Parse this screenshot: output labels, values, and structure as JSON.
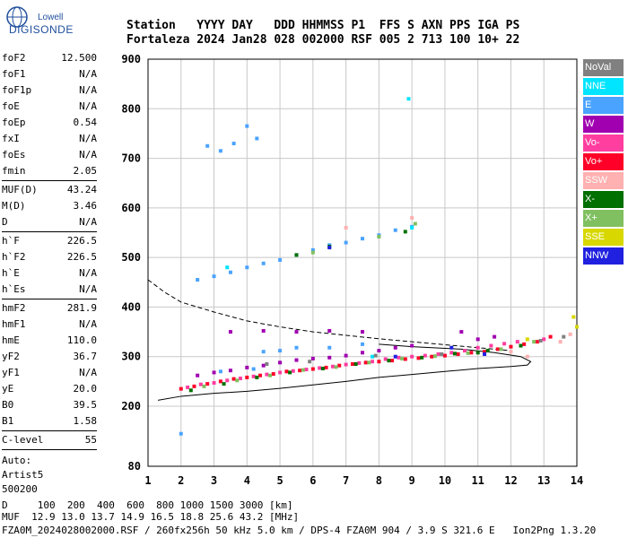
{
  "logo": {
    "brand": "Lowell",
    "name": "DIGISONDE"
  },
  "header": {
    "line1": "Station   YYYY DAY   DDD HHMMSS P1  FFS S AXN PPS IGA PS",
    "line2": "Fortaleza 2024 Jan28 028 002000 RSF 005 2 713 100 10+ 22"
  },
  "params": {
    "group1": [
      {
        "k": "foF2",
        "v": "12.500"
      },
      {
        "k": "foF1",
        "v": "N/A"
      },
      {
        "k": "foF1p",
        "v": "N/A"
      },
      {
        "k": "foE",
        "v": "N/A"
      },
      {
        "k": "foEp",
        "v": "0.54"
      },
      {
        "k": "fxI",
        "v": "N/A"
      },
      {
        "k": "foEs",
        "v": "N/A"
      },
      {
        "k": "fmin",
        "v": "2.05"
      }
    ],
    "group2": [
      {
        "k": "MUF(D)",
        "v": "43.24"
      },
      {
        "k": "M(D)",
        "v": "3.46"
      },
      {
        "k": "D",
        "v": "N/A"
      }
    ],
    "group3": [
      {
        "k": "h`F",
        "v": "226.5"
      },
      {
        "k": "h`F2",
        "v": "226.5"
      },
      {
        "k": "h`E",
        "v": "N/A"
      },
      {
        "k": "h`Es",
        "v": "N/A"
      }
    ],
    "group4": [
      {
        "k": "hmF2",
        "v": "281.9"
      },
      {
        "k": "hmF1",
        "v": "N/A"
      },
      {
        "k": "hmE",
        "v": "110.0"
      },
      {
        "k": "yF2",
        "v": "36.7"
      },
      {
        "k": "yF1",
        "v": "N/A"
      },
      {
        "k": "yE",
        "v": "20.0"
      },
      {
        "k": "B0",
        "v": "39.5"
      },
      {
        "k": "B1",
        "v": "1.58"
      }
    ],
    "group5": [
      {
        "k": "C-level",
        "v": "55"
      }
    ],
    "auto": [
      "Auto:",
      "Artist5",
      "500200"
    ]
  },
  "footer": {
    "line1": "D     100  200  400  600  800 1000 1500 3000 [km]",
    "line2": "MUF  12.9 13.0 13.7 14.9 16.5 18.8 25.6 43.2 [MHz]",
    "line3": "FZA0M_2024028002000.RSF / 260fx256h 50 kHz 5.0 km / DPS-4 FZA0M 904 / 3.9 S 321.6 E   Ion2Png 1.3.20"
  },
  "legend": [
    {
      "label": "NoVal",
      "color": "#808080"
    },
    {
      "label": "NNE",
      "color": "#00e5ff"
    },
    {
      "label": "E",
      "color": "#4aa3ff"
    },
    {
      "label": "W",
      "color": "#a000b0"
    },
    {
      "label": "Vo-",
      "color": "#ff3ea0"
    },
    {
      "label": "Vo+",
      "color": "#ff0028"
    },
    {
      "label": "SSW",
      "color": "#ffb0b0"
    },
    {
      "label": "X-",
      "color": "#007000"
    },
    {
      "label": "X+",
      "color": "#80c060"
    },
    {
      "label": "SSE",
      "color": "#d8d800"
    },
    {
      "label": "NNW",
      "color": "#2020e0"
    }
  ],
  "chart_data": {
    "type": "scatter",
    "title": "",
    "xlabel": "",
    "ylabel": "",
    "xlim": [
      1,
      14
    ],
    "ylim": [
      80,
      900
    ],
    "x_ticks": [
      1,
      2,
      3,
      4,
      5,
      6,
      7,
      8,
      9,
      10,
      11,
      12,
      13,
      14
    ],
    "y_ticks": [
      80,
      200,
      300,
      400,
      500,
      600,
      700,
      800,
      900
    ],
    "grid": true,
    "series": [
      {
        "color": "#ff0028",
        "points": [
          [
            2.0,
            235
          ],
          [
            2.4,
            240
          ],
          [
            2.8,
            245
          ],
          [
            3.2,
            250
          ],
          [
            3.6,
            255
          ],
          [
            4.0,
            258
          ],
          [
            4.4,
            262
          ],
          [
            4.8,
            265
          ],
          [
            5.2,
            270
          ],
          [
            5.6,
            272
          ],
          [
            6.0,
            275
          ],
          [
            6.4,
            278
          ],
          [
            6.8,
            282
          ],
          [
            7.2,
            285
          ],
          [
            7.6,
            288
          ],
          [
            8.0,
            290
          ],
          [
            8.4,
            292
          ],
          [
            8.8,
            295
          ],
          [
            9.2,
            297
          ],
          [
            9.6,
            300
          ],
          [
            10.0,
            302
          ],
          [
            10.4,
            305
          ],
          [
            10.8,
            308
          ],
          [
            11.2,
            310
          ],
          [
            11.6,
            315
          ],
          [
            12.0,
            320
          ],
          [
            12.4,
            325
          ],
          [
            12.8,
            330
          ],
          [
            13.2,
            340
          ]
        ]
      },
      {
        "color": "#ff3ea0",
        "points": [
          [
            2.2,
            238
          ],
          [
            2.6,
            244
          ],
          [
            3.0,
            247
          ],
          [
            3.4,
            252
          ],
          [
            3.8,
            256
          ],
          [
            4.2,
            260
          ],
          [
            4.6,
            264
          ],
          [
            5.0,
            268
          ],
          [
            5.4,
            271
          ],
          [
            5.8,
            274
          ],
          [
            6.2,
            277
          ],
          [
            6.6,
            280
          ],
          [
            7.0,
            284
          ],
          [
            7.4,
            287
          ],
          [
            7.8,
            290
          ],
          [
            8.2,
            295
          ],
          [
            8.6,
            298
          ],
          [
            9.0,
            300
          ],
          [
            9.4,
            302
          ],
          [
            9.8,
            305
          ],
          [
            10.2,
            308
          ],
          [
            10.6,
            312
          ],
          [
            11.0,
            318
          ],
          [
            11.4,
            322
          ],
          [
            11.8,
            326
          ],
          [
            12.2,
            330
          ],
          [
            13.0,
            335
          ]
        ]
      },
      {
        "color": "#a000b0",
        "points": [
          [
            2.5,
            262
          ],
          [
            3.0,
            268
          ],
          [
            3.5,
            272
          ],
          [
            4.0,
            278
          ],
          [
            4.5,
            282
          ],
          [
            5.0,
            288
          ],
          [
            5.5,
            293
          ],
          [
            6.0,
            296
          ],
          [
            6.5,
            298
          ],
          [
            7.0,
            302
          ],
          [
            7.5,
            308
          ],
          [
            8.0,
            312
          ],
          [
            8.5,
            318
          ],
          [
            9.0,
            322
          ],
          [
            10.5,
            350
          ],
          [
            11.0,
            335
          ],
          [
            11.5,
            340
          ],
          [
            3.5,
            350
          ],
          [
            4.5,
            352
          ],
          [
            5.5,
            350
          ],
          [
            6.5,
            352
          ],
          [
            7.5,
            350
          ]
        ]
      },
      {
        "color": "#4aa3ff",
        "points": [
          [
            2.8,
            725
          ],
          [
            3.2,
            715
          ],
          [
            3.6,
            730
          ],
          [
            4.0,
            765
          ],
          [
            4.3,
            740
          ],
          [
            2.5,
            455
          ],
          [
            3.0,
            462
          ],
          [
            3.5,
            470
          ],
          [
            4.0,
            480
          ],
          [
            4.5,
            488
          ],
          [
            5.0,
            495
          ],
          [
            5.5,
            505
          ],
          [
            6.0,
            515
          ],
          [
            6.5,
            525
          ],
          [
            7.0,
            530
          ],
          [
            7.5,
            538
          ],
          [
            8.0,
            545
          ],
          [
            8.5,
            555
          ],
          [
            9.0,
            562
          ],
          [
            4.5,
            310
          ],
          [
            5.0,
            312
          ],
          [
            5.5,
            318
          ],
          [
            6.5,
            318
          ],
          [
            7.5,
            325
          ],
          [
            3.2,
            270
          ],
          [
            4.2,
            275
          ],
          [
            2.0,
            145
          ]
        ]
      },
      {
        "color": "#007000",
        "points": [
          [
            2.3,
            232
          ],
          [
            3.3,
            245
          ],
          [
            4.3,
            258
          ],
          [
            5.3,
            268
          ],
          [
            6.3,
            276
          ],
          [
            7.3,
            285
          ],
          [
            8.3,
            292
          ],
          [
            9.3,
            298
          ],
          [
            10.3,
            306
          ],
          [
            11.3,
            312
          ],
          [
            12.3,
            322
          ],
          [
            5.5,
            505
          ],
          [
            6.5,
            522
          ],
          [
            8.8,
            552
          ],
          [
            11.0,
            308
          ]
        ]
      },
      {
        "color": "#80c060",
        "points": [
          [
            2.7,
            240
          ],
          [
            3.7,
            252
          ],
          [
            4.7,
            262
          ],
          [
            5.7,
            273
          ],
          [
            6.7,
            279
          ],
          [
            7.7,
            288
          ],
          [
            8.7,
            296
          ],
          [
            9.7,
            301
          ],
          [
            10.7,
            307
          ],
          [
            11.7,
            315
          ],
          [
            12.7,
            330
          ],
          [
            6.0,
            510
          ],
          [
            8.0,
            542
          ],
          [
            9.1,
            568
          ]
        ]
      },
      {
        "color": "#ffb0b0",
        "points": [
          [
            12.5,
            300
          ],
          [
            13.5,
            330
          ],
          [
            13.8,
            345
          ],
          [
            12.0,
            310
          ],
          [
            9.0,
            580
          ],
          [
            7.0,
            560
          ]
        ]
      },
      {
        "color": "#00e5ff",
        "points": [
          [
            8.9,
            820
          ],
          [
            9.0,
            560
          ],
          [
            3.4,
            480
          ],
          [
            7.8,
            300
          ]
        ]
      },
      {
        "color": "#d8d800",
        "points": [
          [
            14.0,
            360
          ],
          [
            13.9,
            380
          ],
          [
            12.5,
            335
          ]
        ]
      },
      {
        "color": "#2020e0",
        "points": [
          [
            8.5,
            300
          ],
          [
            10.2,
            318
          ],
          [
            11.2,
            305
          ],
          [
            6.5,
            520
          ]
        ]
      },
      {
        "color": "#808080",
        "points": [
          [
            4.6,
            285
          ],
          [
            5.9,
            290
          ],
          [
            7.9,
            302
          ],
          [
            9.9,
            305
          ],
          [
            12.9,
            332
          ],
          [
            13.6,
            340
          ]
        ]
      }
    ],
    "profile_line": {
      "style": "solid",
      "color": "#000",
      "points": [
        [
          1.3,
          212
        ],
        [
          2.0,
          220
        ],
        [
          3.0,
          226
        ],
        [
          4.0,
          230
        ],
        [
          5.0,
          236
        ],
        [
          6.0,
          243
        ],
        [
          7.0,
          250
        ],
        [
          8.0,
          258
        ],
        [
          9.0,
          264
        ],
        [
          10.0,
          270
        ],
        [
          11.0,
          276
        ],
        [
          12.0,
          280
        ],
        [
          12.5,
          283
        ],
        [
          12.6,
          290
        ],
        [
          12.3,
          300
        ],
        [
          11.5,
          308
        ],
        [
          10.5,
          315
        ],
        [
          9.0,
          320
        ],
        [
          8.0,
          325
        ]
      ]
    },
    "dashed_line": {
      "style": "dashed",
      "color": "#000",
      "points": [
        [
          1.0,
          455
        ],
        [
          1.5,
          430
        ],
        [
          2.0,
          410
        ],
        [
          3.0,
          390
        ],
        [
          4.0,
          372
        ],
        [
          5.0,
          360
        ],
        [
          6.0,
          350
        ],
        [
          7.0,
          343
        ],
        [
          8.0,
          336
        ],
        [
          9.0,
          330
        ],
        [
          10.0,
          324
        ],
        [
          11.0,
          318
        ],
        [
          12.0,
          312
        ]
      ]
    }
  }
}
